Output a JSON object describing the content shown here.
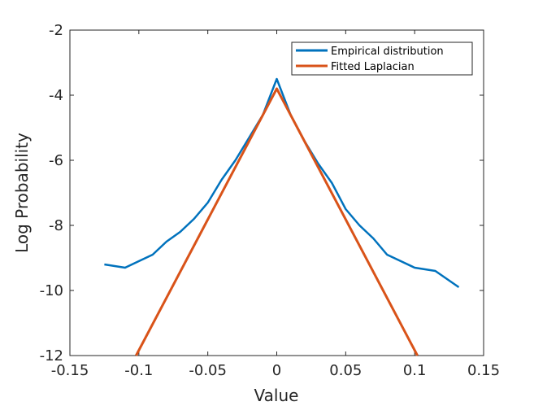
{
  "chart_data": {
    "type": "line",
    "title": "",
    "xlabel": "Value",
    "ylabel": "Log Probability",
    "xlim": [
      -0.15,
      0.15
    ],
    "ylim": [
      -12,
      -2
    ],
    "xticks": [
      -0.15,
      -0.1,
      -0.05,
      0,
      0.05,
      0.1,
      0.15
    ],
    "xtick_labels": [
      "-0.15",
      "-0.1",
      "-0.05",
      "0",
      "0.05",
      "0.1",
      "0.15"
    ],
    "yticks": [
      -12,
      -10,
      -8,
      -6,
      -4,
      -2
    ],
    "ytick_labels": [
      "-12",
      "-10",
      "-8",
      "-6",
      "-4",
      "-2"
    ],
    "grid": false,
    "legend_position": "top-right",
    "series": [
      {
        "name": "Empirical distribution",
        "color": "#0072BD",
        "x": [
          -0.125,
          -0.11,
          -0.1,
          -0.09,
          -0.08,
          -0.07,
          -0.06,
          -0.05,
          -0.04,
          -0.03,
          -0.02,
          -0.01,
          0,
          0.01,
          0.02,
          0.03,
          0.04,
          0.05,
          0.06,
          0.07,
          0.08,
          0.09,
          0.1,
          0.115,
          0.132
        ],
        "y": [
          -9.2,
          -9.3,
          -9.1,
          -8.9,
          -8.5,
          -8.2,
          -7.8,
          -7.3,
          -6.6,
          -6.0,
          -5.3,
          -4.6,
          -3.5,
          -4.6,
          -5.4,
          -6.1,
          -6.7,
          -7.5,
          -8.0,
          -8.4,
          -8.9,
          -9.1,
          -9.3,
          -9.4,
          -9.9
        ]
      },
      {
        "name": "Fitted Laplacian",
        "color": "#D95319",
        "x": [
          -0.102,
          0,
          0.102
        ],
        "y": [
          -12,
          -3.8,
          -12
        ]
      }
    ]
  }
}
